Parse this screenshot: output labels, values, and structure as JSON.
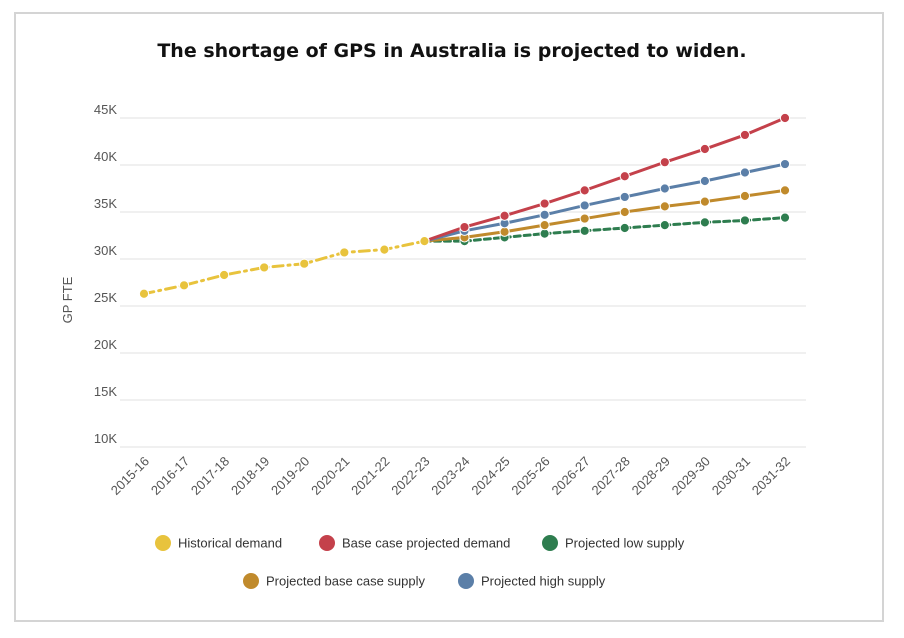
{
  "chart_data": {
    "type": "line",
    "title": "The shortage of GPS in Australia is projected to widen.",
    "ylabel": "GP FTE",
    "ylim": [
      10000,
      45000
    ],
    "yticks": [
      10000,
      15000,
      20000,
      25000,
      30000,
      35000,
      40000,
      45000
    ],
    "ytick_labels": [
      "10K",
      "15K",
      "20K",
      "25K",
      "30K",
      "35K",
      "40K",
      "45K"
    ],
    "categories": [
      "2015-16",
      "2016-17",
      "2017-18",
      "2018-19",
      "2019-20",
      "2020-21",
      "2021-22",
      "2022-23",
      "2023-24",
      "2024-25",
      "2025-26",
      "2026-27",
      "2027-28",
      "2028-29",
      "2029-30",
      "2030-31",
      "2031-32"
    ],
    "grid": true,
    "legend_position": "bottom",
    "series": [
      {
        "name": "Historical demand",
        "color": "#e8c33d",
        "dash": "dashdot",
        "values": [
          26300,
          27200,
          28300,
          29100,
          29500,
          30700,
          31000,
          31900,
          null,
          null,
          null,
          null,
          null,
          null,
          null,
          null,
          null
        ]
      },
      {
        "name": "Base case projected demand",
        "color": "#c4414b",
        "dash": "solid",
        "values": [
          null,
          null,
          null,
          null,
          null,
          null,
          null,
          31900,
          33400,
          34600,
          35900,
          37300,
          38800,
          40300,
          41700,
          43200,
          45000
        ]
      },
      {
        "name": "Projected low supply",
        "color": "#2e7d4f",
        "dash": "dashed",
        "values": [
          null,
          null,
          null,
          null,
          null,
          null,
          null,
          31900,
          31900,
          32300,
          32700,
          33000,
          33300,
          33600,
          33900,
          34100,
          34400
        ]
      },
      {
        "name": "Projected base case supply",
        "color": "#c08a2c",
        "dash": "solid",
        "values": [
          null,
          null,
          null,
          null,
          null,
          null,
          null,
          31900,
          32300,
          32900,
          33600,
          34300,
          35000,
          35600,
          36100,
          36700,
          37300
        ]
      },
      {
        "name": "Projected high supply",
        "color": "#5b7fa8",
        "dash": "solid",
        "values": [
          null,
          null,
          null,
          null,
          null,
          null,
          null,
          31900,
          33000,
          33800,
          34700,
          35700,
          36600,
          37500,
          38300,
          39200,
          40100
        ]
      }
    ],
    "legend_order": [
      0,
      1,
      2,
      3,
      4
    ]
  }
}
